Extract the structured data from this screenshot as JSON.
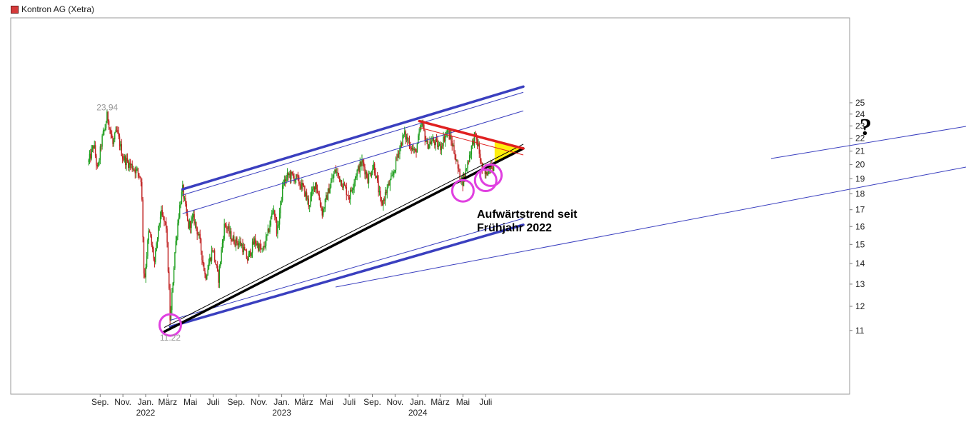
{
  "legend": {
    "label": "Kontron AG (Xetra)",
    "color": "#d63a3a"
  },
  "annotations": {
    "trend_line1": "Aufwärtstrend seit",
    "trend_line2": "Frühjahr 2022",
    "question_mark": "?"
  },
  "chart_data": {
    "type": "candlestick",
    "title": "Kontron AG (Xetra)",
    "y_axis": {
      "side": "right",
      "scale": "log",
      "range": [
        10.0,
        27.0
      ],
      "ticks": [
        11,
        12,
        13,
        14,
        15,
        16,
        17,
        18,
        19,
        20,
        21,
        22,
        23,
        24,
        25
      ]
    },
    "x_axis": {
      "month_ticks": [
        "Sep.",
        "Nov.",
        "Jan.",
        "März",
        "Mai",
        "Juli",
        "Sep.",
        "Nov.",
        "Jan.",
        "März",
        "Mai",
        "Juli",
        "Sep.",
        "Nov.",
        "Jan.",
        "März",
        "Mai",
        "Juli"
      ],
      "year_ticks": [
        "2022",
        "2023",
        "2024"
      ]
    },
    "labels": {
      "high": "23.94",
      "low": "11.22"
    },
    "price_path": [
      [
        "2021-08",
        20.2
      ],
      [
        "2021-08-15",
        21.5
      ],
      [
        "2021-08-25",
        19.5
      ],
      [
        "2021-09-05",
        21.8
      ],
      [
        "2021-09-15",
        23.0
      ],
      [
        "2021-09-20",
        23.94
      ],
      [
        "2021-10-05",
        21.5
      ],
      [
        "2021-10-15",
        22.6
      ],
      [
        "2021-11-01",
        20.5
      ],
      [
        "2021-11-20",
        20.0
      ],
      [
        "2021-12-10",
        19.5
      ],
      [
        "2021-12-20",
        19.0
      ],
      [
        "2021-12-28",
        13.0
      ],
      [
        "2022-01-10",
        15.8
      ],
      [
        "2022-01-25",
        14.0
      ],
      [
        "2022-02-10",
        16.8
      ],
      [
        "2022-02-25",
        16.0
      ],
      [
        "2022-03-08",
        11.22
      ],
      [
        "2022-03-20",
        14.5
      ],
      [
        "2022-04-01",
        17.0
      ],
      [
        "2022-04-10",
        18.3
      ],
      [
        "2022-04-25",
        16.0
      ],
      [
        "2022-05-10",
        16.5
      ],
      [
        "2022-05-25",
        15.3
      ],
      [
        "2022-06-10",
        13.3
      ],
      [
        "2022-06-30",
        14.8
      ],
      [
        "2022-07-15",
        13.2
      ],
      [
        "2022-08-01",
        16.2
      ],
      [
        "2022-08-20",
        15.3
      ],
      [
        "2022-09-15",
        15.0
      ],
      [
        "2022-10-01",
        14.2
      ],
      [
        "2022-10-20",
        15.2
      ],
      [
        "2022-11-10",
        14.6
      ],
      [
        "2022-11-25",
        15.6
      ],
      [
        "2022-12-10",
        17.2
      ],
      [
        "2022-12-20",
        15.6
      ],
      [
        "2023-01-05",
        18.7
      ],
      [
        "2023-01-20",
        19.3
      ],
      [
        "2023-02-10",
        19.0
      ],
      [
        "2023-03-01",
        18.3
      ],
      [
        "2023-03-15",
        17.3
      ],
      [
        "2023-04-01",
        18.8
      ],
      [
        "2023-04-20",
        16.8
      ],
      [
        "2023-05-10",
        18.5
      ],
      [
        "2023-05-25",
        19.6
      ],
      [
        "2023-06-15",
        18.6
      ],
      [
        "2023-07-01",
        17.8
      ],
      [
        "2023-07-20",
        19.4
      ],
      [
        "2023-08-05",
        20.2
      ],
      [
        "2023-08-20",
        19.0
      ],
      [
        "2023-09-05",
        20.0
      ],
      [
        "2023-09-25",
        17.2
      ],
      [
        "2023-10-10",
        18.3
      ],
      [
        "2023-10-25",
        19.1
      ],
      [
        "2023-11-10",
        21.0
      ],
      [
        "2023-11-25",
        22.3
      ],
      [
        "2023-12-10",
        21.6
      ],
      [
        "2023-12-25",
        20.8
      ],
      [
        "2024-01-05",
        22.3
      ],
      [
        "2024-01-12",
        23.2
      ],
      [
        "2024-01-25",
        21.5
      ],
      [
        "2024-02-10",
        21.8
      ],
      [
        "2024-03-01",
        21.3
      ],
      [
        "2024-03-20",
        22.6
      ],
      [
        "2024-04-05",
        21.3
      ],
      [
        "2024-04-20",
        19.4
      ],
      [
        "2024-05-01",
        18.8
      ],
      [
        "2024-05-15",
        20.3
      ],
      [
        "2024-06-01",
        22.2
      ],
      [
        "2024-06-10",
        21.5
      ],
      [
        "2024-06-20",
        19.8
      ],
      [
        "2024-07-01",
        19.2
      ],
      [
        "2024-07-15",
        20.2
      ],
      [
        "2024-07-25",
        19.6
      ]
    ],
    "trend_lines": [
      {
        "name": "upper-channel",
        "color": "#3a3fbf",
        "from": [
          "2022-04-10",
          18.3
        ],
        "to": [
          "2024-10-10",
          26.5
        ],
        "weight": "thick"
      },
      {
        "name": "lower-channel",
        "color": "#3a3fbf",
        "from": [
          "2022-03-08",
          11.15
        ],
        "to": [
          "2024-10-10",
          16.1
        ],
        "weight": "thick"
      },
      {
        "name": "uptrend",
        "color": "#000000",
        "from": [
          "2022-02-20",
          10.95
        ],
        "to": [
          "2024-10-10",
          21.2
        ],
        "weight": "thick"
      },
      {
        "name": "resistance",
        "color": "#e02020",
        "from": [
          "2024-01-05",
          23.4
        ],
        "to": [
          "2024-10-10",
          21.2
        ],
        "weight": "thick"
      }
    ],
    "highlight_triangle": {
      "color": "#ffee00"
    },
    "markers": [
      [
        "2022-03-08",
        11.22
      ],
      [
        "2024-05-01",
        18.2
      ],
      [
        "2024-07-01",
        18.9
      ],
      [
        "2024-07-15",
        19.25
      ]
    ]
  }
}
